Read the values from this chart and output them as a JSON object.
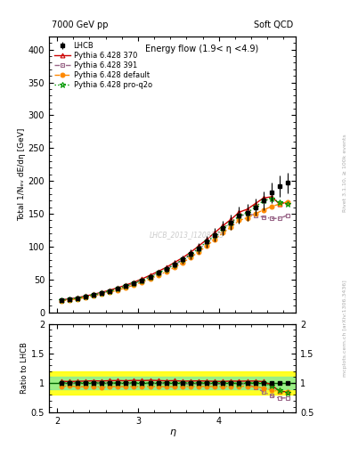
{
  "title_left": "7000 GeV pp",
  "title_right": "Soft QCD",
  "plot_title": "Energy flow (1.9< η <4.9)",
  "xlabel": "η",
  "ylabel_main": "Total 1/Nₑᵥ dE/dη [GeV]",
  "ylabel_ratio": "Ratio to LHCB",
  "watermark": "LHCB_2013_I1208105",
  "rivet_text": "Rivet 3.1.10, ≥ 100k events",
  "mcplots_text": "mcplots.cern.ch [arXiv:1306.3436]",
  "eta": [
    2.05,
    2.15,
    2.25,
    2.35,
    2.45,
    2.55,
    2.65,
    2.75,
    2.85,
    2.95,
    3.05,
    3.15,
    3.25,
    3.35,
    3.45,
    3.55,
    3.65,
    3.75,
    3.85,
    3.95,
    4.05,
    4.15,
    4.25,
    4.35,
    4.45,
    4.55,
    4.65,
    4.75,
    4.85
  ],
  "lhcb": [
    18.5,
    20.0,
    21.8,
    24.0,
    26.5,
    29.5,
    32.5,
    36.0,
    40.0,
    44.0,
    49.0,
    54.0,
    60.0,
    66.0,
    73.0,
    80.5,
    88.5,
    97.5,
    107.5,
    118.0,
    128.5,
    137.0,
    148.0,
    152.0,
    160.0,
    170.0,
    182.0,
    192.0,
    197.0
  ],
  "lhcb_err": [
    1.5,
    1.5,
    1.8,
    2.0,
    2.2,
    2.5,
    2.5,
    3.0,
    3.0,
    3.5,
    4.0,
    4.5,
    5.0,
    5.5,
    6.0,
    6.5,
    7.0,
    8.0,
    9.0,
    10.0,
    11.0,
    11.5,
    12.5,
    12.5,
    13.0,
    14.0,
    15.0,
    16.0,
    16.0
  ],
  "py370": [
    19.0,
    20.5,
    22.5,
    24.8,
    27.5,
    30.5,
    33.8,
    37.5,
    41.5,
    46.0,
    51.0,
    56.5,
    62.5,
    68.5,
    76.0,
    83.0,
    91.5,
    101.0,
    111.0,
    121.5,
    132.0,
    141.5,
    152.5,
    157.0,
    165.5,
    174.0,
    176.0,
    165.0,
    168.0
  ],
  "py391": [
    18.5,
    20.0,
    21.8,
    24.0,
    26.5,
    29.5,
    32.5,
    36.0,
    40.0,
    44.0,
    49.0,
    54.0,
    60.0,
    66.0,
    72.5,
    79.5,
    87.5,
    96.0,
    106.0,
    116.0,
    127.0,
    136.0,
    146.0,
    150.0,
    148.0,
    145.0,
    143.0,
    143.0,
    148.0
  ],
  "pydef": [
    17.5,
    19.0,
    20.5,
    22.5,
    25.0,
    27.5,
    30.5,
    34.0,
    37.5,
    41.5,
    46.0,
    51.0,
    56.5,
    62.0,
    68.5,
    75.5,
    83.5,
    92.0,
    101.5,
    111.0,
    121.0,
    130.0,
    140.0,
    144.0,
    150.0,
    156.0,
    161.0,
    165.0,
    168.0
  ],
  "pyq2o": [
    18.5,
    20.0,
    21.8,
    24.0,
    26.5,
    29.5,
    32.5,
    36.0,
    40.0,
    44.0,
    49.0,
    54.0,
    60.0,
    66.0,
    73.0,
    80.5,
    88.5,
    97.5,
    107.5,
    117.5,
    128.0,
    137.0,
    147.0,
    151.5,
    160.5,
    170.0,
    173.0,
    168.0,
    165.0
  ],
  "ratio_py370": [
    1.03,
    1.025,
    1.03,
    1.033,
    1.038,
    1.034,
    1.04,
    1.042,
    1.038,
    1.045,
    1.041,
    1.046,
    1.042,
    1.037,
    1.041,
    1.031,
    1.034,
    1.036,
    1.033,
    1.029,
    1.027,
    1.033,
    1.031,
    1.033,
    1.034,
    1.024,
    0.967,
    0.859,
    0.853
  ],
  "ratio_py391": [
    1.0,
    1.0,
    1.0,
    1.0,
    1.0,
    1.0,
    1.0,
    1.0,
    1.0,
    1.0,
    1.0,
    1.0,
    1.0,
    1.0,
    0.993,
    0.988,
    0.989,
    0.985,
    0.986,
    0.983,
    0.988,
    0.993,
    0.986,
    0.987,
    0.925,
    0.853,
    0.786,
    0.745,
    0.751
  ],
  "ratio_pydef": [
    0.946,
    0.95,
    0.94,
    0.938,
    0.943,
    0.932,
    0.938,
    0.944,
    0.938,
    0.943,
    0.939,
    0.944,
    0.942,
    0.939,
    0.938,
    0.938,
    0.944,
    0.944,
    0.944,
    0.941,
    0.941,
    0.948,
    0.946,
    0.947,
    0.938,
    0.918,
    0.885,
    0.859,
    0.853
  ],
  "ratio_pyq2o": [
    1.0,
    1.0,
    1.0,
    1.0,
    1.0,
    1.0,
    1.0,
    1.0,
    1.0,
    1.0,
    1.0,
    1.0,
    1.0,
    1.0,
    1.0,
    1.0,
    1.0,
    1.0,
    1.0,
    0.996,
    0.996,
    1.0,
    0.993,
    0.997,
    1.003,
    1.0,
    0.951,
    0.875,
    0.838
  ],
  "color_lhcb": "#000000",
  "color_py370": "#cc0000",
  "color_py391": "#996688",
  "color_pydef": "#ff8800",
  "color_pyq2o": "#009900",
  "ylim_main": [
    0,
    420
  ],
  "ylim_ratio": [
    0.5,
    2.0
  ],
  "yticks_main": [
    0,
    50,
    100,
    150,
    200,
    250,
    300,
    350,
    400
  ],
  "xlim": [
    1.9,
    4.95
  ]
}
